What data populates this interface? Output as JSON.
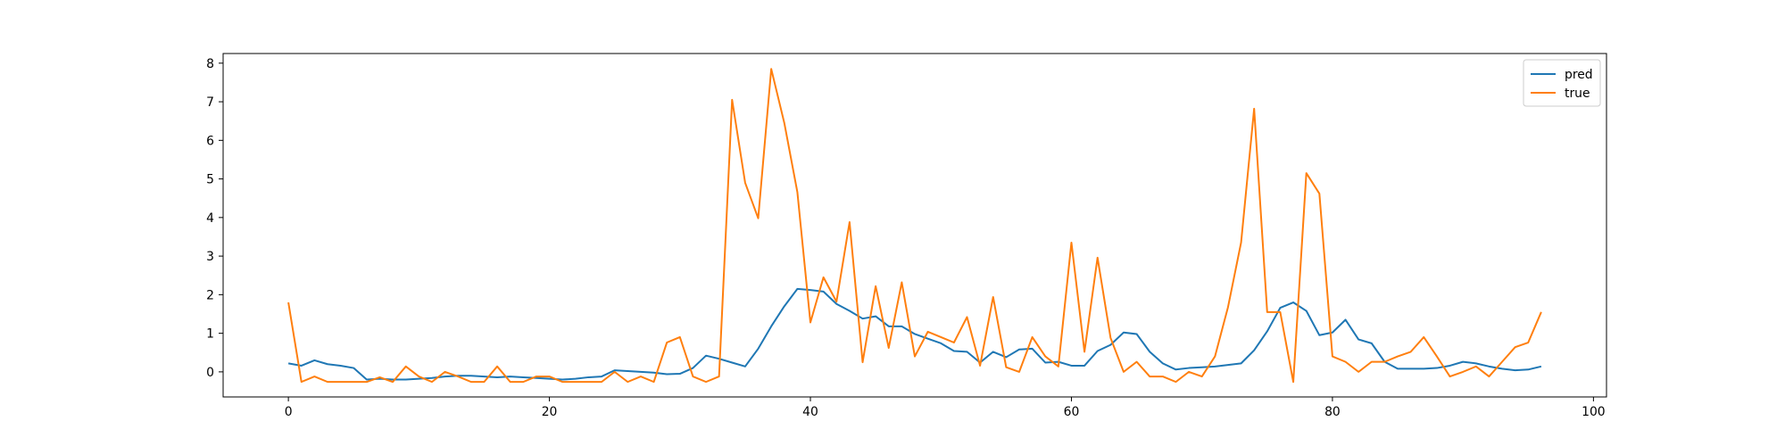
{
  "chart_data": {
    "type": "line",
    "title": "",
    "xlabel": "",
    "ylabel": "",
    "xlim": [
      -5,
      101
    ],
    "ylim": [
      -0.65,
      8.25
    ],
    "xticks": [
      0,
      20,
      40,
      60,
      80,
      100
    ],
    "yticks": [
      0,
      1,
      2,
      3,
      4,
      5,
      6,
      7,
      8
    ],
    "grid": false,
    "legend_position": "top-right",
    "x": [
      0,
      1,
      2,
      3,
      4,
      5,
      6,
      7,
      8,
      9,
      10,
      11,
      12,
      13,
      14,
      15,
      16,
      17,
      18,
      19,
      20,
      21,
      22,
      23,
      24,
      25,
      26,
      27,
      28,
      29,
      30,
      31,
      32,
      33,
      34,
      35,
      36,
      37,
      38,
      39,
      40,
      41,
      42,
      43,
      44,
      45,
      46,
      47,
      48,
      49,
      50,
      51,
      52,
      53,
      54,
      55,
      56,
      57,
      58,
      59,
      60,
      61,
      62,
      63,
      64,
      65,
      66,
      67,
      68,
      69,
      70,
      71,
      72,
      73,
      74,
      75,
      76,
      77,
      78,
      79,
      80,
      81,
      82,
      83,
      84,
      85,
      86,
      87,
      88,
      89,
      90,
      91,
      92,
      93,
      94,
      95,
      96
    ],
    "series": [
      {
        "name": "pred",
        "color": "#1f77b4",
        "values": [
          0.22,
          0.16,
          0.3,
          0.2,
          0.16,
          0.1,
          -0.2,
          -0.18,
          -0.2,
          -0.2,
          -0.18,
          -0.16,
          -0.12,
          -0.1,
          -0.1,
          -0.12,
          -0.14,
          -0.12,
          -0.14,
          -0.16,
          -0.18,
          -0.2,
          -0.18,
          -0.14,
          -0.12,
          0.04,
          0.02,
          0.0,
          -0.02,
          -0.06,
          -0.05,
          0.1,
          0.42,
          0.34,
          0.24,
          0.14,
          0.6,
          1.18,
          1.7,
          2.15,
          2.12,
          2.08,
          1.76,
          1.58,
          1.38,
          1.44,
          1.18,
          1.18,
          0.98,
          0.86,
          0.74,
          0.54,
          0.52,
          0.24,
          0.52,
          0.38,
          0.58,
          0.6,
          0.24,
          0.26,
          0.16,
          0.16,
          0.54,
          0.7,
          1.02,
          0.98,
          0.52,
          0.22,
          0.06,
          0.1,
          0.12,
          0.14,
          0.18,
          0.22,
          0.56,
          1.05,
          1.66,
          1.8,
          1.58,
          0.95,
          1.02,
          1.35,
          0.84,
          0.74,
          0.26,
          0.08,
          0.08,
          0.08,
          0.1,
          0.16,
          0.26,
          0.22,
          0.14,
          0.08,
          0.04,
          0.06,
          0.14
        ]
      },
      {
        "name": "true",
        "color": "#ff7f0e",
        "values": [
          1.8,
          -0.26,
          -0.12,
          -0.26,
          -0.26,
          -0.26,
          -0.26,
          -0.14,
          -0.26,
          0.14,
          -0.12,
          -0.26,
          0.0,
          -0.12,
          -0.26,
          -0.26,
          0.14,
          -0.26,
          -0.26,
          -0.12,
          -0.12,
          -0.26,
          -0.26,
          -0.26,
          -0.26,
          0.0,
          -0.26,
          -0.12,
          -0.26,
          0.76,
          0.9,
          -0.12,
          -0.26,
          -0.12,
          7.05,
          4.9,
          3.98,
          7.85,
          6.45,
          4.66,
          1.28,
          2.45,
          1.82,
          3.88,
          0.25,
          2.22,
          0.62,
          2.32,
          0.4,
          1.04,
          0.9,
          0.76,
          1.42,
          0.16,
          1.94,
          0.12,
          0.0,
          0.9,
          0.4,
          0.14,
          3.35,
          0.52,
          2.96,
          0.88,
          0.0,
          0.26,
          -0.12,
          -0.12,
          -0.26,
          0.0,
          -0.12,
          0.4,
          1.68,
          3.35,
          6.82,
          1.55,
          1.55,
          -0.26,
          5.15,
          4.62,
          0.4,
          0.26,
          0.0,
          0.26,
          0.26,
          0.4,
          0.52,
          0.9,
          0.4,
          -0.12,
          0.0,
          0.14,
          -0.12,
          0.26,
          0.64,
          0.76,
          1.55
        ]
      }
    ]
  }
}
